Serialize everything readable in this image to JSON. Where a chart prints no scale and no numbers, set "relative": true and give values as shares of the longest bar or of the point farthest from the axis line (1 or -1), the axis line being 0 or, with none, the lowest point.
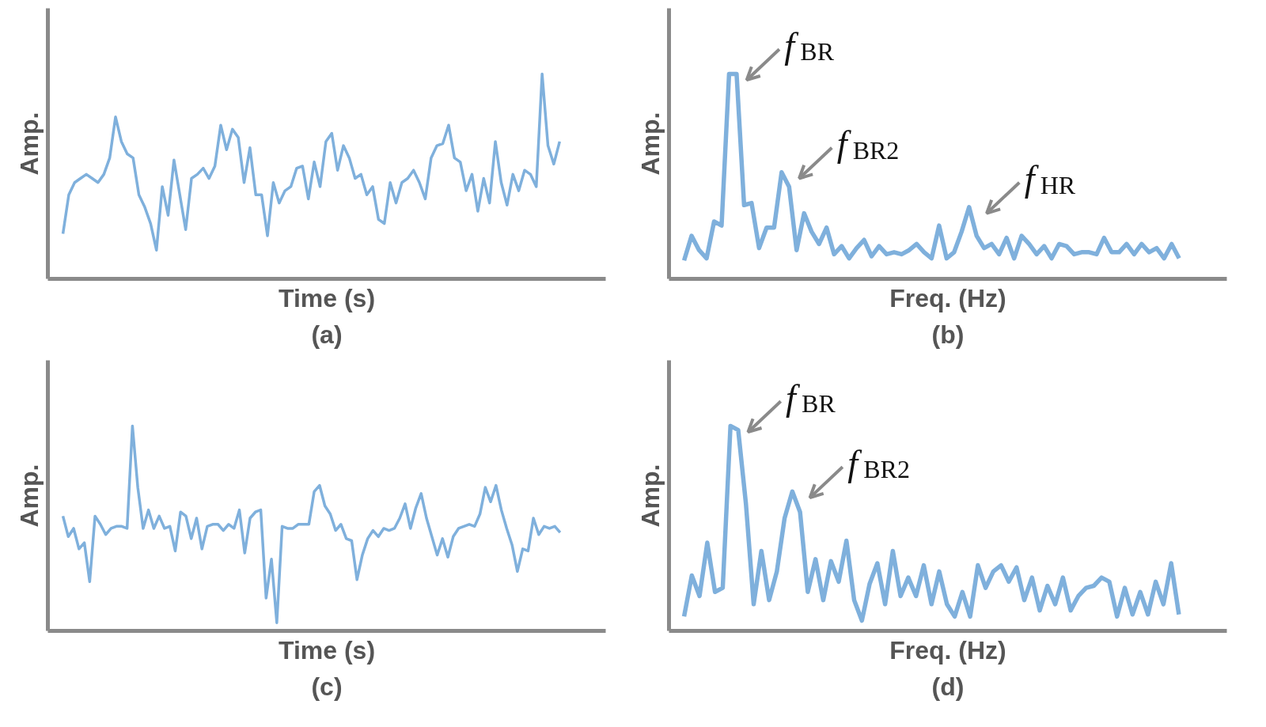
{
  "chart_data": [
    {
      "type": "line",
      "title": "(a)",
      "xlabel": "Time (s)",
      "ylabel": "Amp.",
      "relative": true,
      "categories": [
        null,
        null,
        null,
        null,
        null,
        null,
        null,
        null,
        null,
        null,
        null,
        null,
        null,
        null,
        null,
        null,
        null,
        null,
        null,
        null,
        null,
        null,
        null,
        null,
        null,
        null,
        null,
        null,
        null,
        null,
        null,
        null,
        null,
        null,
        null,
        null,
        null,
        null,
        null,
        null,
        null,
        null,
        null,
        null,
        null,
        null,
        null,
        null,
        null,
        null,
        null,
        null,
        null,
        null,
        null,
        null,
        null,
        null,
        null,
        null,
        null,
        null,
        null,
        null,
        null,
        null,
        null,
        null,
        null,
        null,
        null,
        null,
        null,
        null,
        null,
        null,
        null,
        null,
        null,
        null,
        null,
        null,
        null,
        null,
        null,
        null
      ],
      "series": [
        {
          "color": "#7fb0dc",
          "values": [
            0.22,
            0.41,
            0.47,
            0.49,
            0.51,
            0.49,
            0.47,
            0.51,
            0.59,
            0.79,
            0.67,
            0.61,
            0.59,
            0.41,
            0.35,
            0.27,
            0.14,
            0.45,
            0.31,
            0.58,
            0.41,
            0.24,
            0.49,
            0.51,
            0.54,
            0.49,
            0.55,
            0.75,
            0.63,
            0.73,
            0.69,
            0.47,
            0.64,
            0.41,
            0.41,
            0.21,
            0.47,
            0.37,
            0.43,
            0.45,
            0.54,
            0.55,
            0.39,
            0.57,
            0.45,
            0.67,
            0.71,
            0.53,
            0.65,
            0.59,
            0.49,
            0.51,
            0.41,
            0.45,
            0.29,
            0.27,
            0.47,
            0.37,
            0.47,
            0.49,
            0.53,
            0.47,
            0.39,
            0.59,
            0.65,
            0.66,
            0.75,
            0.59,
            0.57,
            0.43,
            0.51,
            0.33,
            0.49,
            0.37,
            0.67,
            0.47,
            0.36,
            0.51,
            0.43,
            0.53,
            0.51,
            0.45,
            1.0,
            0.65,
            0.56,
            0.67
          ]
        }
      ]
    },
    {
      "type": "line",
      "title": "(b)",
      "xlabel": "Freq. (Hz)",
      "ylabel": "Amp.",
      "relative": true,
      "categories": [
        null,
        null,
        null,
        null,
        null,
        null,
        null,
        null,
        null,
        null,
        null,
        null,
        null,
        null,
        null,
        null,
        null,
        null,
        null,
        null,
        null,
        null,
        null,
        null,
        null,
        null,
        null,
        null,
        null,
        null,
        null,
        null,
        null,
        null,
        null,
        null,
        null,
        null,
        null,
        null,
        null,
        null,
        null,
        null,
        null,
        null,
        null,
        null,
        null,
        null,
        null,
        null,
        null,
        null,
        null,
        null,
        null,
        null,
        null,
        null,
        null,
        null,
        null,
        null,
        null,
        null,
        null
      ],
      "series": [
        {
          "color": "#7fb0dc",
          "values": [
            0.09,
            0.21,
            0.14,
            0.1,
            0.28,
            0.26,
            1.0,
            1.0,
            0.36,
            0.37,
            0.15,
            0.25,
            0.25,
            0.52,
            0.45,
            0.14,
            0.32,
            0.23,
            0.17,
            0.25,
            0.12,
            0.16,
            0.1,
            0.15,
            0.19,
            0.11,
            0.16,
            0.12,
            0.13,
            0.12,
            0.14,
            0.17,
            0.13,
            0.1,
            0.26,
            0.1,
            0.13,
            0.23,
            0.35,
            0.21,
            0.15,
            0.17,
            0.12,
            0.2,
            0.1,
            0.21,
            0.17,
            0.12,
            0.16,
            0.1,
            0.17,
            0.16,
            0.12,
            0.13,
            0.13,
            0.12,
            0.2,
            0.13,
            0.13,
            0.17,
            0.12,
            0.17,
            0.13,
            0.15,
            0.1,
            0.17,
            0.1
          ]
        }
      ],
      "annotations": [
        "f$_{BR}$",
        "f$_{BR2}$",
        "f$_{HR}$"
      ]
    },
    {
      "type": "line",
      "title": "(c)",
      "xlabel": "Time (s)",
      "ylabel": "Amp.",
      "relative": true,
      "categories": [
        null,
        null,
        null,
        null,
        null,
        null,
        null,
        null,
        null,
        null,
        null,
        null,
        null,
        null,
        null,
        null,
        null,
        null,
        null,
        null,
        null,
        null,
        null,
        null,
        null,
        null,
        null,
        null,
        null,
        null,
        null,
        null,
        null,
        null,
        null,
        null,
        null,
        null,
        null,
        null,
        null,
        null,
        null,
        null,
        null,
        null,
        null,
        null,
        null,
        null,
        null,
        null,
        null,
        null,
        null,
        null,
        null,
        null,
        null,
        null,
        null,
        null,
        null,
        null,
        null,
        null,
        null,
        null,
        null,
        null,
        null,
        null,
        null,
        null,
        null,
        null,
        null,
        null,
        null,
        null,
        null,
        null,
        null,
        null,
        null,
        null,
        null,
        null,
        null,
        null,
        null,
        null,
        null,
        null
      ],
      "series": [
        {
          "color": "#7fb0dc",
          "values": [
            0.56,
            0.46,
            0.5,
            0.4,
            0.43,
            0.24,
            0.56,
            0.52,
            0.47,
            0.5,
            0.51,
            0.51,
            0.5,
            1.0,
            0.7,
            0.5,
            0.59,
            0.5,
            0.56,
            0.5,
            0.51,
            0.39,
            0.58,
            0.56,
            0.45,
            0.55,
            0.4,
            0.51,
            0.52,
            0.52,
            0.49,
            0.52,
            0.5,
            0.59,
            0.38,
            0.55,
            0.58,
            0.59,
            0.16,
            0.35,
            0.04,
            0.51,
            0.5,
            0.5,
            0.52,
            0.52,
            0.52,
            0.68,
            0.71,
            0.61,
            0.57,
            0.49,
            0.52,
            0.45,
            0.44,
            0.25,
            0.37,
            0.45,
            0.49,
            0.46,
            0.5,
            0.49,
            0.5,
            0.55,
            0.62,
            0.5,
            0.6,
            0.67,
            0.55,
            0.46,
            0.37,
            0.45,
            0.36,
            0.46,
            0.5,
            0.51,
            0.52,
            0.51,
            0.57,
            0.7,
            0.63,
            0.71,
            0.59,
            0.5,
            0.42,
            0.29,
            0.4,
            0.39,
            0.55,
            0.47,
            0.51,
            0.5,
            0.51,
            0.48
          ]
        }
      ]
    },
    {
      "type": "line",
      "title": "(d)",
      "xlabel": "Freq. (Hz)",
      "ylabel": "Amp.",
      "relative": true,
      "categories": [
        null,
        null,
        null,
        null,
        null,
        null,
        null,
        null,
        null,
        null,
        null,
        null,
        null,
        null,
        null,
        null,
        null,
        null,
        null,
        null,
        null,
        null,
        null,
        null,
        null,
        null,
        null,
        null,
        null,
        null,
        null,
        null,
        null,
        null,
        null,
        null,
        null,
        null,
        null,
        null,
        null,
        null,
        null,
        null,
        null,
        null,
        null,
        null,
        null,
        null,
        null,
        null,
        null,
        null,
        null,
        null,
        null,
        null,
        null,
        null,
        null,
        null,
        null,
        null,
        null
      ],
      "series": [
        {
          "color": "#7fb0dc",
          "values": [
            0.07,
            0.27,
            0.17,
            0.43,
            0.19,
            0.21,
            1.0,
            0.98,
            0.62,
            0.13,
            0.39,
            0.15,
            0.29,
            0.55,
            0.68,
            0.58,
            0.19,
            0.35,
            0.15,
            0.34,
            0.24,
            0.44,
            0.15,
            0.05,
            0.23,
            0.33,
            0.13,
            0.39,
            0.17,
            0.26,
            0.17,
            0.32,
            0.13,
            0.29,
            0.13,
            0.07,
            0.19,
            0.07,
            0.32,
            0.21,
            0.29,
            0.32,
            0.24,
            0.31,
            0.15,
            0.26,
            0.1,
            0.22,
            0.13,
            0.26,
            0.1,
            0.17,
            0.21,
            0.22,
            0.26,
            0.24,
            0.07,
            0.21,
            0.08,
            0.19,
            0.08,
            0.24,
            0.13,
            0.33,
            0.08
          ]
        }
      ],
      "annotations": [
        "f$_{BR}$",
        "f$_{BR2}$"
      ]
    }
  ]
}
